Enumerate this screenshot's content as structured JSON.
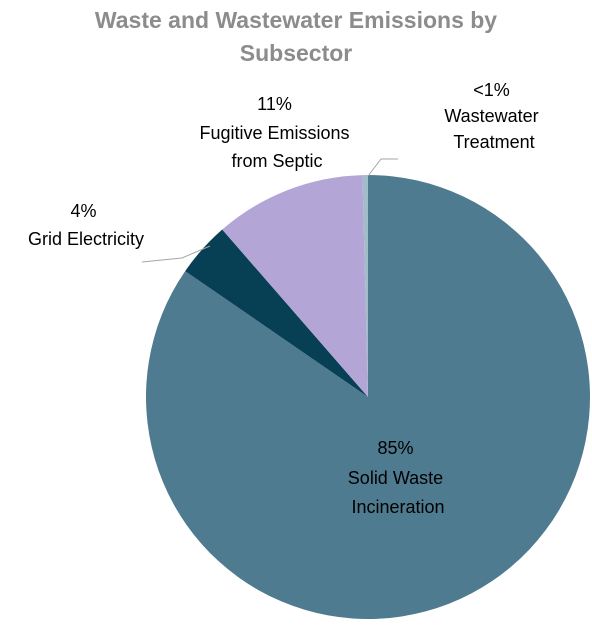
{
  "chart_data": {
    "type": "pie",
    "title": "Waste and Wastewater Emissions by Subsector",
    "title_lines": [
      "Waste and Wastewater Emissions by",
      "Subsector"
    ],
    "slices": [
      {
        "label": "Solid Waste Incineration",
        "label_lines": [
          "Solid Waste",
          "Incineration"
        ],
        "pct_label": "85%",
        "value": 84.6,
        "color": "#4e7b8f"
      },
      {
        "label": "Grid Electricity",
        "label_lines": [
          "Grid Electricity"
        ],
        "pct_label": "4%",
        "value": 4.0,
        "color": "#073f54"
      },
      {
        "label": "Fugitive Emissions from Septic",
        "label_lines": [
          "Fugitive Emissions",
          "from Septic"
        ],
        "pct_label": "11%",
        "value": 11.0,
        "color": "#b3a6d6"
      },
      {
        "label": "Wastewater Treatment",
        "label_lines": [
          "Wastewater",
          "Treatment"
        ],
        "pct_label": "<1%",
        "value": 0.4,
        "color": "#a3bcc9"
      }
    ],
    "legend": "none",
    "title_color": "#8c8c8c",
    "leader_line_color": "#a6a6a6"
  }
}
